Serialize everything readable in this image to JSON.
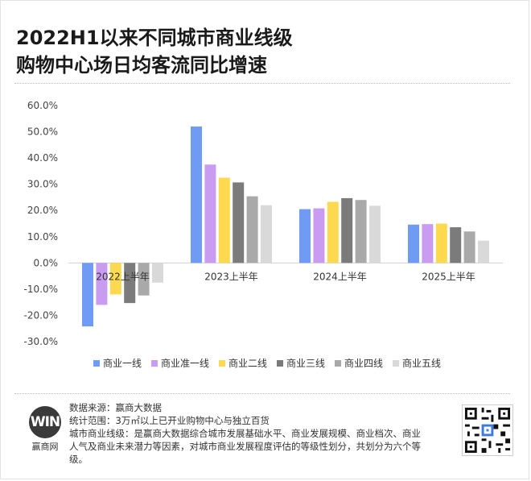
{
  "header": {
    "title_line1": "2022H1以来不同城市商业线级",
    "title_line2": "购物中心场日均客流同比增速"
  },
  "chart_data": {
    "type": "bar",
    "categories": [
      "2022上半年",
      "2023上半年",
      "2024上半年",
      "2025上半年"
    ],
    "series": [
      {
        "name": "商业一线",
        "color": "#6f9bf5",
        "values": [
          -24.2,
          52.0,
          20.5,
          14.6
        ]
      },
      {
        "name": "商业准一线",
        "color": "#c99cf2",
        "values": [
          -16.0,
          37.5,
          20.8,
          14.8
        ]
      },
      {
        "name": "商业二线",
        "color": "#fcd94e",
        "values": [
          -12.0,
          32.5,
          23.3,
          15.0
        ]
      },
      {
        "name": "商业三线",
        "color": "#7b7b7b",
        "values": [
          -15.3,
          30.7,
          24.7,
          13.6
        ]
      },
      {
        "name": "商业四线",
        "color": "#a9a9a9",
        "values": [
          -12.4,
          25.4,
          24.0,
          12.0
        ]
      },
      {
        "name": "商业五线",
        "color": "#d9d9d9",
        "values": [
          -7.5,
          22.0,
          21.8,
          8.5
        ]
      }
    ],
    "ylim": [
      -30,
      60
    ],
    "yticks": [
      "60.0%",
      "50.0%",
      "40.0%",
      "30.0%",
      "20.0%",
      "10.0%",
      "0.0%",
      "-10.0%",
      "-20.0%",
      "-30.0%"
    ],
    "ytick_values": [
      60,
      50,
      40,
      30,
      20,
      10,
      0,
      -10,
      -20,
      -30
    ],
    "legend_position": "bottom",
    "grid": false
  },
  "footer": {
    "logo_mark": "WIN",
    "logo_text": "赢商网",
    "note1": "数据来源：赢商大数据",
    "note2": "统计范围：3万㎡以上已开业购物中心与独立百货",
    "note3": "城市商业线级：是赢商大数据综合城市发展基础水平、商业发展规模、商业档次、商业人气及商业未来潜力等因素，对城市商业发展程度评估的等级性划分，共划分为六个等级。"
  }
}
